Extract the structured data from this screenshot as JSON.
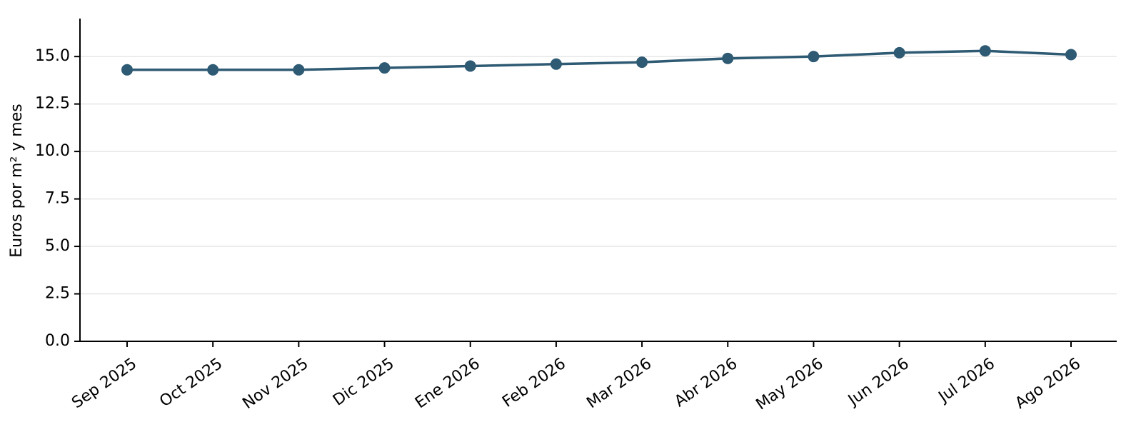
{
  "chart_data": {
    "type": "line",
    "title": "",
    "xlabel": "",
    "ylabel": "Euros por m² y mes",
    "categories": [
      "Sep 2025",
      "Oct 2025",
      "Nov 2025",
      "Dic 2025",
      "Ene 2026",
      "Feb 2026",
      "Mar 2026",
      "Abr 2026",
      "May 2026",
      "Jun 2026",
      "Jul 2026",
      "Ago 2026"
    ],
    "series": [
      {
        "values": [
          14.3,
          14.3,
          14.3,
          14.4,
          14.5,
          14.6,
          14.7,
          14.9,
          15.0,
          15.2,
          15.3,
          15.1
        ],
        "color": "#2e5a73"
      }
    ],
    "ylim": [
      0,
      17
    ],
    "yticks": [
      "0.0",
      "2.5",
      "5.0",
      "7.5",
      "10.0",
      "12.5",
      "15.0"
    ],
    "grid": "horizontal",
    "legend": "none"
  }
}
